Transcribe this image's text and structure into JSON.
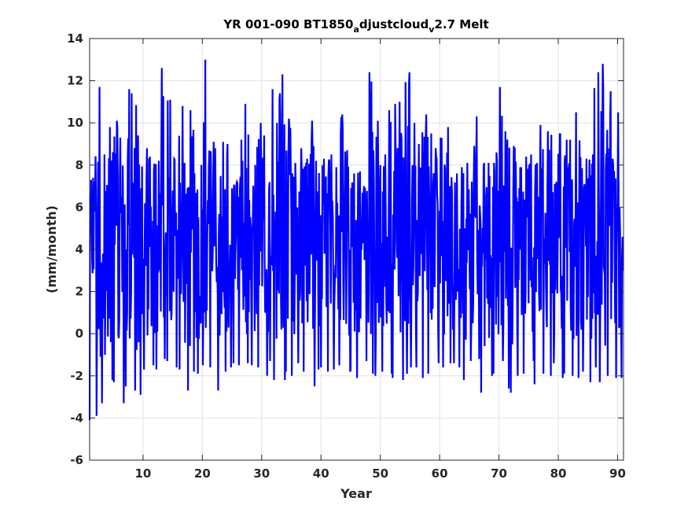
{
  "chart_data": {
    "type": "line",
    "title": {
      "part1": "YR 001-090 BT1850",
      "sub1": "a",
      "part2": "djustcloud",
      "sub2": "v",
      "part3": "2.7 Melt"
    },
    "xlabel": "Year",
    "ylabel": "(mm/month)",
    "xlim": [
      1,
      91
    ],
    "ylim": [
      -6,
      14
    ],
    "xticks": [
      10,
      20,
      30,
      40,
      50,
      60,
      70,
      80,
      90
    ],
    "yticks": [
      -6,
      -4,
      -2,
      0,
      2,
      4,
      6,
      8,
      10,
      12,
      14
    ],
    "grid": true,
    "series": [
      {
        "color": "#0000ff",
        "years": 90,
        "samples_per_year": 12,
        "annual_max": [
          7.4,
          11.7,
          8.5,
          9.8,
          10.1,
          9.3,
          11.6,
          11.4,
          9.4,
          8.8,
          8.4,
          8.2,
          12.6,
          11.1,
          8.3,
          10.8,
          8.1,
          10.6,
          8.0,
          13.0,
          9.1,
          8.8,
          9.1,
          9.0,
          7.2,
          9.2,
          10.9,
          8.0,
          10.0,
          9.4,
          11.6,
          10.0,
          12.3,
          10.2,
          8.1,
          8.8,
          8.3,
          10.1,
          8.2,
          8.3,
          8.5,
          7.9,
          10.4,
          8.7,
          7.6,
          7.7,
          7.0,
          12.4,
          10.1,
          8.5,
          10.6,
          10.9,
          11.0,
          12.4,
          10.0,
          9.0,
          10.4,
          9.5,
          8.8,
          9.3,
          9.8,
          7.6,
          7.9,
          8.1,
          8.9,
          10.3,
          8.1,
          8.1,
          8.6,
          11.7,
          9.6,
          8.9,
          7.9,
          8.4,
          8.5,
          8.1,
          9.9,
          9.6,
          7.2,
          9.5,
          9.2,
          9.2,
          10.5,
          8.3,
          8.5,
          12.4,
          12.8,
          11.5,
          8.3,
          10.5
        ],
        "annual_min": [
          -4.1,
          -3.9,
          -3.3,
          -2.2,
          -2.3,
          -3.3,
          -2.5,
          -2.7,
          -2.9,
          -1.7,
          -1.5,
          -1.7,
          -1.2,
          -1.3,
          -1.6,
          -1.7,
          -2.7,
          -1.8,
          -1.9,
          -1.5,
          -1.6,
          -2.7,
          -1.8,
          -1.6,
          -1.4,
          -1.5,
          -1.4,
          -1.5,
          -1.6,
          -2.0,
          -1.3,
          -2.2,
          -2.2,
          -1.8,
          -2.0,
          -1.4,
          -1.8,
          -2.5,
          -1.7,
          -1.6,
          -1.8,
          -1.7,
          -1.5,
          -1.8,
          -1.7,
          -2.1,
          -1.3,
          -1.9,
          -2.0,
          -1.8,
          -1.9,
          -2.1,
          -2.2,
          -1.9,
          -1.6,
          -1.6,
          -2.1,
          -1.9,
          -1.4,
          -1.6,
          -1.4,
          -1.4,
          -1.6,
          -2.2,
          -1.3,
          -1.2,
          -2.8,
          -2.0,
          -1.9,
          -1.3,
          -2.6,
          -2.8,
          -2.0,
          -1.9,
          -1.3,
          -2.4,
          -1.9,
          -2.0,
          -1.4,
          -2.1,
          -1.9,
          -2.0,
          -2.1,
          -1.8,
          -2.3,
          -1.6,
          -2.3,
          -2.0,
          -2.1,
          -2.1
        ],
        "typical_low": 2.0,
        "typical_high": 6.5
      }
    ]
  }
}
